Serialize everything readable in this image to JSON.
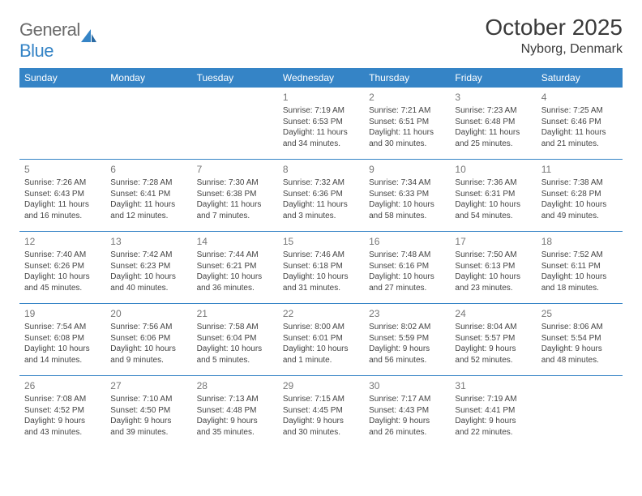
{
  "logo": {
    "text_part1": "General",
    "text_part2": "Blue",
    "mark_color": "#3584c6"
  },
  "header": {
    "month_title": "October 2025",
    "location": "Nyborg, Denmark"
  },
  "colors": {
    "header_bg": "#3584c6",
    "header_text": "#ffffff",
    "border": "#3584c6",
    "body_text": "#3a3a3a",
    "daynum_text": "#777777"
  },
  "day_names": [
    "Sunday",
    "Monday",
    "Tuesday",
    "Wednesday",
    "Thursday",
    "Friday",
    "Saturday"
  ],
  "weeks": [
    [
      {
        "num": "",
        "sunrise": "",
        "sunset": "",
        "daylight": ""
      },
      {
        "num": "",
        "sunrise": "",
        "sunset": "",
        "daylight": ""
      },
      {
        "num": "",
        "sunrise": "",
        "sunset": "",
        "daylight": ""
      },
      {
        "num": "1",
        "sunrise": "Sunrise: 7:19 AM",
        "sunset": "Sunset: 6:53 PM",
        "daylight": "Daylight: 11 hours and 34 minutes."
      },
      {
        "num": "2",
        "sunrise": "Sunrise: 7:21 AM",
        "sunset": "Sunset: 6:51 PM",
        "daylight": "Daylight: 11 hours and 30 minutes."
      },
      {
        "num": "3",
        "sunrise": "Sunrise: 7:23 AM",
        "sunset": "Sunset: 6:48 PM",
        "daylight": "Daylight: 11 hours and 25 minutes."
      },
      {
        "num": "4",
        "sunrise": "Sunrise: 7:25 AM",
        "sunset": "Sunset: 6:46 PM",
        "daylight": "Daylight: 11 hours and 21 minutes."
      }
    ],
    [
      {
        "num": "5",
        "sunrise": "Sunrise: 7:26 AM",
        "sunset": "Sunset: 6:43 PM",
        "daylight": "Daylight: 11 hours and 16 minutes."
      },
      {
        "num": "6",
        "sunrise": "Sunrise: 7:28 AM",
        "sunset": "Sunset: 6:41 PM",
        "daylight": "Daylight: 11 hours and 12 minutes."
      },
      {
        "num": "7",
        "sunrise": "Sunrise: 7:30 AM",
        "sunset": "Sunset: 6:38 PM",
        "daylight": "Daylight: 11 hours and 7 minutes."
      },
      {
        "num": "8",
        "sunrise": "Sunrise: 7:32 AM",
        "sunset": "Sunset: 6:36 PM",
        "daylight": "Daylight: 11 hours and 3 minutes."
      },
      {
        "num": "9",
        "sunrise": "Sunrise: 7:34 AM",
        "sunset": "Sunset: 6:33 PM",
        "daylight": "Daylight: 10 hours and 58 minutes."
      },
      {
        "num": "10",
        "sunrise": "Sunrise: 7:36 AM",
        "sunset": "Sunset: 6:31 PM",
        "daylight": "Daylight: 10 hours and 54 minutes."
      },
      {
        "num": "11",
        "sunrise": "Sunrise: 7:38 AM",
        "sunset": "Sunset: 6:28 PM",
        "daylight": "Daylight: 10 hours and 49 minutes."
      }
    ],
    [
      {
        "num": "12",
        "sunrise": "Sunrise: 7:40 AM",
        "sunset": "Sunset: 6:26 PM",
        "daylight": "Daylight: 10 hours and 45 minutes."
      },
      {
        "num": "13",
        "sunrise": "Sunrise: 7:42 AM",
        "sunset": "Sunset: 6:23 PM",
        "daylight": "Daylight: 10 hours and 40 minutes."
      },
      {
        "num": "14",
        "sunrise": "Sunrise: 7:44 AM",
        "sunset": "Sunset: 6:21 PM",
        "daylight": "Daylight: 10 hours and 36 minutes."
      },
      {
        "num": "15",
        "sunrise": "Sunrise: 7:46 AM",
        "sunset": "Sunset: 6:18 PM",
        "daylight": "Daylight: 10 hours and 31 minutes."
      },
      {
        "num": "16",
        "sunrise": "Sunrise: 7:48 AM",
        "sunset": "Sunset: 6:16 PM",
        "daylight": "Daylight: 10 hours and 27 minutes."
      },
      {
        "num": "17",
        "sunrise": "Sunrise: 7:50 AM",
        "sunset": "Sunset: 6:13 PM",
        "daylight": "Daylight: 10 hours and 23 minutes."
      },
      {
        "num": "18",
        "sunrise": "Sunrise: 7:52 AM",
        "sunset": "Sunset: 6:11 PM",
        "daylight": "Daylight: 10 hours and 18 minutes."
      }
    ],
    [
      {
        "num": "19",
        "sunrise": "Sunrise: 7:54 AM",
        "sunset": "Sunset: 6:08 PM",
        "daylight": "Daylight: 10 hours and 14 minutes."
      },
      {
        "num": "20",
        "sunrise": "Sunrise: 7:56 AM",
        "sunset": "Sunset: 6:06 PM",
        "daylight": "Daylight: 10 hours and 9 minutes."
      },
      {
        "num": "21",
        "sunrise": "Sunrise: 7:58 AM",
        "sunset": "Sunset: 6:04 PM",
        "daylight": "Daylight: 10 hours and 5 minutes."
      },
      {
        "num": "22",
        "sunrise": "Sunrise: 8:00 AM",
        "sunset": "Sunset: 6:01 PM",
        "daylight": "Daylight: 10 hours and 1 minute."
      },
      {
        "num": "23",
        "sunrise": "Sunrise: 8:02 AM",
        "sunset": "Sunset: 5:59 PM",
        "daylight": "Daylight: 9 hours and 56 minutes."
      },
      {
        "num": "24",
        "sunrise": "Sunrise: 8:04 AM",
        "sunset": "Sunset: 5:57 PM",
        "daylight": "Daylight: 9 hours and 52 minutes."
      },
      {
        "num": "25",
        "sunrise": "Sunrise: 8:06 AM",
        "sunset": "Sunset: 5:54 PM",
        "daylight": "Daylight: 9 hours and 48 minutes."
      }
    ],
    [
      {
        "num": "26",
        "sunrise": "Sunrise: 7:08 AM",
        "sunset": "Sunset: 4:52 PM",
        "daylight": "Daylight: 9 hours and 43 minutes."
      },
      {
        "num": "27",
        "sunrise": "Sunrise: 7:10 AM",
        "sunset": "Sunset: 4:50 PM",
        "daylight": "Daylight: 9 hours and 39 minutes."
      },
      {
        "num": "28",
        "sunrise": "Sunrise: 7:13 AM",
        "sunset": "Sunset: 4:48 PM",
        "daylight": "Daylight: 9 hours and 35 minutes."
      },
      {
        "num": "29",
        "sunrise": "Sunrise: 7:15 AM",
        "sunset": "Sunset: 4:45 PM",
        "daylight": "Daylight: 9 hours and 30 minutes."
      },
      {
        "num": "30",
        "sunrise": "Sunrise: 7:17 AM",
        "sunset": "Sunset: 4:43 PM",
        "daylight": "Daylight: 9 hours and 26 minutes."
      },
      {
        "num": "31",
        "sunrise": "Sunrise: 7:19 AM",
        "sunset": "Sunset: 4:41 PM",
        "daylight": "Daylight: 9 hours and 22 minutes."
      },
      {
        "num": "",
        "sunrise": "",
        "sunset": "",
        "daylight": ""
      }
    ]
  ]
}
